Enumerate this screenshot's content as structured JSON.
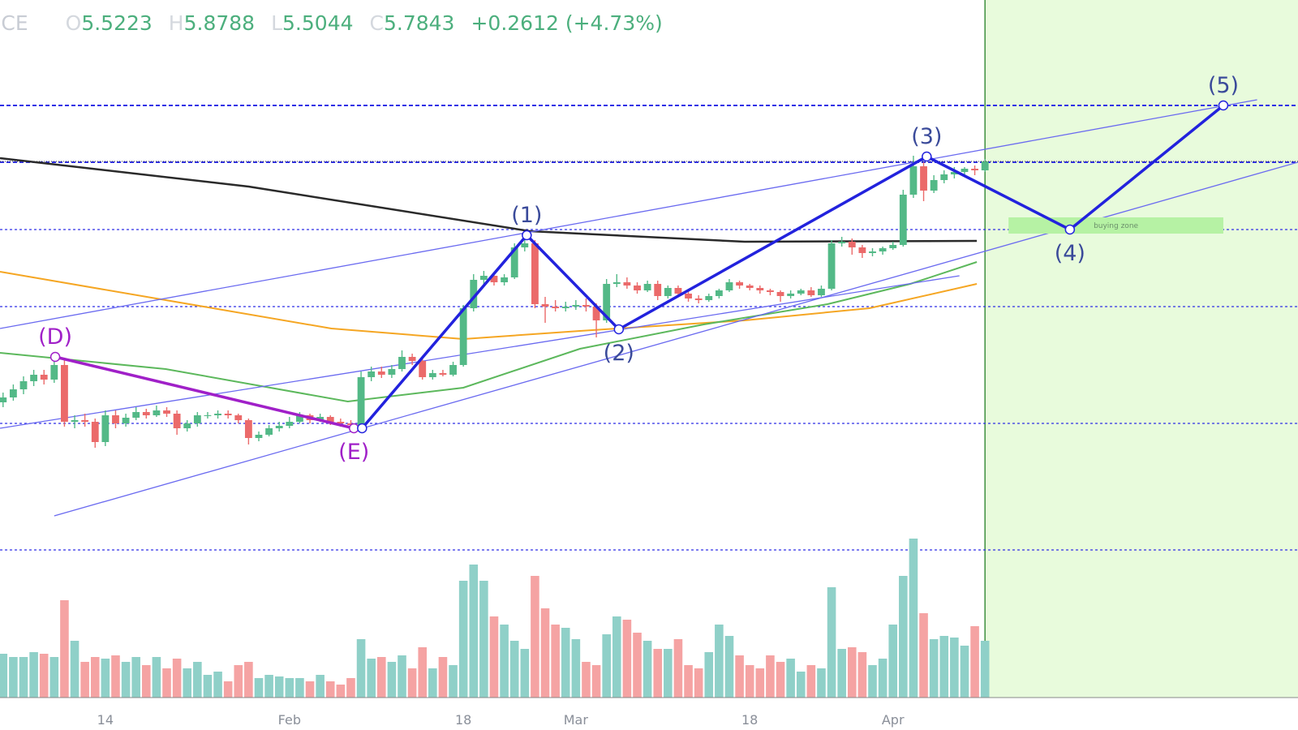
{
  "chart_data": {
    "type": "candlestick",
    "header": {
      "symbol": "ICE",
      "fields": [
        {
          "label": "O",
          "value": 5.5223
        },
        {
          "label": "H",
          "value": 5.8788
        },
        {
          "label": "L",
          "value": 5.5044
        },
        {
          "label": "C",
          "value": 5.7843
        }
      ],
      "change": {
        "value": 0.2612,
        "label": "+0.2612"
      },
      "change_pct": {
        "value": 4.73,
        "label": "(+4.73%)"
      }
    },
    "categories": [
      null,
      null,
      null,
      null,
      null,
      null,
      null,
      null,
      null,
      null,
      "14",
      null,
      null,
      null,
      null,
      null,
      null,
      null,
      null,
      null,
      null,
      null,
      null,
      null,
      null,
      null,
      null,
      null,
      "Feb",
      null,
      null,
      null,
      null,
      null,
      null,
      null,
      null,
      null,
      null,
      null,
      null,
      null,
      null,
      null,
      null,
      "18",
      null,
      null,
      null,
      null,
      null,
      null,
      null,
      null,
      null,
      null,
      "Mar",
      null,
      null,
      null,
      null,
      null,
      null,
      null,
      null,
      null,
      null,
      null,
      null,
      null,
      null,
      null,
      null,
      "18",
      null,
      null,
      null,
      null,
      null,
      null,
      null,
      null,
      null,
      null,
      null,
      null,
      null,
      "Apr",
      null,
      null,
      null,
      null,
      null,
      null,
      null,
      null,
      null
    ],
    "ohlc": [
      [
        4.3,
        4.36,
        4.27,
        4.33
      ],
      [
        4.33,
        4.41,
        4.31,
        4.38
      ],
      [
        4.38,
        4.46,
        4.35,
        4.43
      ],
      [
        4.43,
        4.5,
        4.4,
        4.47
      ],
      [
        4.47,
        4.5,
        4.41,
        4.44
      ],
      [
        4.44,
        4.56,
        4.42,
        4.53
      ],
      [
        4.53,
        4.57,
        4.15,
        4.18
      ],
      [
        4.18,
        4.22,
        4.14,
        4.19
      ],
      [
        4.19,
        4.23,
        4.15,
        4.18
      ],
      [
        4.18,
        4.2,
        4.02,
        4.055
      ],
      [
        4.055,
        4.25,
        4.03,
        4.22
      ],
      [
        4.22,
        4.25,
        4.14,
        4.17
      ],
      [
        4.17,
        4.23,
        4.15,
        4.205
      ],
      [
        4.205,
        4.27,
        4.19,
        4.24
      ],
      [
        4.24,
        4.26,
        4.2,
        4.22
      ],
      [
        4.22,
        4.28,
        4.21,
        4.25
      ],
      [
        4.25,
        4.27,
        4.21,
        4.23
      ],
      [
        4.23,
        4.25,
        4.1,
        4.14
      ],
      [
        4.14,
        4.19,
        4.12,
        4.17
      ],
      [
        4.17,
        4.24,
        4.15,
        4.22
      ],
      [
        4.22,
        4.24,
        4.2,
        4.22
      ],
      [
        4.22,
        4.25,
        4.2,
        4.23
      ],
      [
        4.23,
        4.25,
        4.2,
        4.22
      ],
      [
        4.22,
        4.23,
        4.17,
        4.19
      ],
      [
        4.19,
        4.2,
        4.04,
        4.08
      ],
      [
        4.08,
        4.12,
        4.06,
        4.1
      ],
      [
        4.1,
        4.16,
        4.09,
        4.14
      ],
      [
        4.14,
        4.18,
        4.12,
        4.155
      ],
      [
        4.155,
        4.21,
        4.14,
        4.18
      ],
      [
        4.18,
        4.24,
        4.17,
        4.22
      ],
      [
        4.22,
        4.23,
        4.17,
        4.19
      ],
      [
        4.19,
        4.23,
        4.18,
        4.21
      ],
      [
        4.21,
        4.22,
        4.16,
        4.18
      ],
      [
        4.18,
        4.2,
        4.15,
        4.17
      ],
      [
        4.17,
        4.19,
        4.14,
        4.16
      ],
      [
        4.16,
        4.49,
        4.15,
        4.455
      ],
      [
        4.455,
        4.52,
        4.43,
        4.49
      ],
      [
        4.49,
        4.52,
        4.45,
        4.47
      ],
      [
        4.47,
        4.53,
        4.45,
        4.505
      ],
      [
        4.505,
        4.62,
        4.49,
        4.58
      ],
      [
        4.58,
        4.6,
        4.53,
        4.555
      ],
      [
        4.555,
        4.57,
        4.44,
        4.455
      ],
      [
        4.455,
        4.5,
        4.44,
        4.48
      ],
      [
        4.48,
        4.5,
        4.46,
        4.47
      ],
      [
        4.47,
        4.55,
        4.46,
        4.53
      ],
      [
        4.53,
        4.9,
        4.52,
        4.88
      ],
      [
        4.88,
        5.09,
        4.86,
        5.055
      ],
      [
        5.055,
        5.11,
        5.03,
        5.08
      ],
      [
        5.08,
        5.1,
        5.02,
        5.04
      ],
      [
        5.04,
        5.09,
        5.02,
        5.07
      ],
      [
        5.07,
        5.28,
        5.06,
        5.255
      ],
      [
        5.255,
        5.34,
        5.23,
        5.28
      ],
      [
        5.28,
        5.3,
        4.88,
        4.905
      ],
      [
        4.905,
        4.95,
        4.79,
        4.89
      ],
      [
        4.89,
        4.93,
        4.86,
        4.88
      ],
      [
        4.88,
        4.92,
        4.86,
        4.89
      ],
      [
        4.89,
        4.93,
        4.87,
        4.9
      ],
      [
        4.9,
        4.94,
        4.86,
        4.89
      ],
      [
        4.89,
        4.91,
        4.7,
        4.805
      ],
      [
        4.805,
        5.06,
        4.79,
        5.03
      ],
      [
        5.03,
        5.09,
        5.01,
        5.04
      ],
      [
        5.04,
        5.07,
        5.0,
        5.02
      ],
      [
        5.02,
        5.04,
        4.97,
        4.99
      ],
      [
        4.99,
        5.05,
        4.98,
        5.03
      ],
      [
        5.03,
        5.05,
        4.93,
        4.955
      ],
      [
        4.955,
        5.02,
        4.94,
        5.005
      ],
      [
        5.005,
        5.02,
        4.95,
        4.97
      ],
      [
        4.97,
        4.99,
        4.92,
        4.94
      ],
      [
        4.94,
        4.96,
        4.91,
        4.93
      ],
      [
        4.93,
        4.97,
        4.92,
        4.955
      ],
      [
        4.955,
        5.0,
        4.94,
        4.99
      ],
      [
        4.99,
        5.06,
        4.98,
        5.04
      ],
      [
        5.04,
        5.05,
        5.0,
        5.02
      ],
      [
        5.02,
        5.03,
        4.99,
        5.005
      ],
      [
        5.005,
        5.02,
        4.97,
        4.99
      ],
      [
        4.99,
        5.0,
        4.96,
        4.98
      ],
      [
        4.98,
        4.99,
        4.92,
        4.955
      ],
      [
        4.955,
        4.99,
        4.94,
        4.97
      ],
      [
        4.97,
        5.0,
        4.96,
        4.99
      ],
      [
        4.99,
        5.01,
        4.95,
        4.96
      ],
      [
        4.96,
        5.02,
        4.95,
        5.0
      ],
      [
        5.0,
        5.3,
        4.99,
        5.28
      ],
      [
        5.28,
        5.32,
        5.26,
        5.29
      ],
      [
        5.29,
        5.31,
        5.21,
        5.255
      ],
      [
        5.255,
        5.27,
        5.19,
        5.22
      ],
      [
        5.22,
        5.25,
        5.2,
        5.23
      ],
      [
        5.23,
        5.26,
        5.21,
        5.25
      ],
      [
        5.25,
        5.29,
        5.24,
        5.27
      ],
      [
        5.27,
        5.61,
        5.26,
        5.58
      ],
      [
        5.58,
        5.82,
        5.56,
        5.755
      ],
      [
        5.755,
        5.78,
        5.54,
        5.605
      ],
      [
        5.605,
        5.7,
        5.59,
        5.67
      ],
      [
        5.67,
        5.73,
        5.65,
        5.705
      ],
      [
        5.705,
        5.75,
        5.68,
        5.72
      ],
      [
        5.72,
        5.75,
        5.69,
        5.74
      ],
      [
        5.74,
        5.76,
        5.7,
        5.73
      ],
      [
        5.73,
        5.8,
        5.72,
        5.785
      ]
    ],
    "volume": [
      27,
      25,
      25,
      28,
      27,
      25,
      60,
      35,
      22,
      25,
      24,
      26,
      22,
      25,
      20,
      25,
      18,
      24,
      18,
      22,
      14,
      16,
      10,
      20,
      22,
      12,
      14,
      13,
      12,
      12,
      10,
      14,
      10,
      8,
      12,
      36,
      24,
      25,
      22,
      26,
      18,
      31,
      18,
      25,
      20,
      72,
      82,
      72,
      50,
      45,
      35,
      30,
      75,
      55,
      45,
      43,
      36,
      22,
      20,
      39,
      50,
      48,
      40,
      35,
      30,
      30,
      36,
      20,
      18,
      28,
      45,
      38,
      26,
      20,
      18,
      26,
      22,
      24,
      16,
      20,
      18,
      68,
      30,
      31,
      28,
      20,
      24,
      45,
      75,
      98,
      52,
      36,
      38,
      37,
      32,
      44,
      35
    ],
    "xlim": [
      -0.3,
      126.6
    ],
    "ylim": [
      2.28,
      6.78
    ],
    "y2lim": [
      0,
      100
    ],
    "up_color": "#53b987",
    "down_color": "#eb6a6a",
    "volume_up_color": "#8fd0c8",
    "volume_down_color": "#f5a3a3",
    "price_line": true,
    "levels": [
      {
        "value": 6.13,
        "bold": true
      },
      {
        "value": 5.78,
        "bold": true
      },
      {
        "value": 5.365,
        "bold": false
      },
      {
        "value": 4.89,
        "bold": false
      },
      {
        "value": 4.17,
        "bold": false
      },
      {
        "value": 3.39,
        "bold": false
      }
    ],
    "level_color": "#2f2fe6",
    "overlays": [
      {
        "color": "#2a2a2a",
        "width": 2.5,
        "points": [
          [
            -0.3,
            5.805
          ],
          [
            24,
            5.63
          ],
          [
            51.5,
            5.355
          ],
          [
            72.5,
            5.29
          ],
          [
            95.2,
            5.295
          ]
        ]
      },
      {
        "color": "#f5a623",
        "width": 2,
        "points": [
          [
            -0.3,
            5.105
          ],
          [
            15.9,
            4.93
          ],
          [
            32.1,
            4.755
          ],
          [
            45,
            4.69
          ],
          [
            56.4,
            4.74
          ],
          [
            72.5,
            4.805
          ],
          [
            84.7,
            4.88
          ],
          [
            95.2,
            5.03
          ]
        ]
      },
      {
        "color": "#5cb85c",
        "width": 2,
        "points": [
          [
            -0.3,
            4.605
          ],
          [
            15.9,
            4.505
          ],
          [
            33.7,
            4.305
          ],
          [
            45,
            4.39
          ],
          [
            56.4,
            4.63
          ],
          [
            68.5,
            4.78
          ],
          [
            80.6,
            4.905
          ],
          [
            88.7,
            5.03
          ],
          [
            95.2,
            5.165
          ]
        ]
      },
      {
        "color": "#6a6af0",
        "width": 1.3,
        "points": [
          [
            -0.3,
            4.755
          ],
          [
            122.6,
            6.165
          ]
        ]
      },
      {
        "color": "#6a6af0",
        "width": 1.3,
        "points": [
          [
            -0.3,
            4.14
          ],
          [
            93.5,
            5.08
          ]
        ]
      },
      {
        "color": "#6a6af0",
        "width": 1.3,
        "points": [
          [
            5.0,
            3.6
          ],
          [
            126.6,
            5.78
          ]
        ]
      }
    ],
    "waves": [
      {
        "color": "#a020c8",
        "points": [
          {
            "label": "(D)",
            "x": 5.1,
            "y": 4.58,
            "pos": "above"
          },
          {
            "label": "(E)",
            "x": 34.3,
            "y": 4.14,
            "pos": "below"
          }
        ]
      },
      {
        "color": "#2222dd",
        "points": [
          {
            "label": null,
            "x": 35.1,
            "y": 4.14,
            "pos": "below"
          },
          {
            "label": "(1)",
            "x": 51.2,
            "y": 5.33,
            "pos": "above"
          },
          {
            "label": "(2)",
            "x": 60.2,
            "y": 4.75,
            "pos": "below"
          },
          {
            "label": "(3)",
            "x": 90.3,
            "y": 5.815,
            "pos": "above"
          },
          {
            "label": "(4)",
            "x": 104.3,
            "y": 5.365,
            "pos": "below"
          },
          {
            "label": "(5)",
            "x": 119.3,
            "y": 6.13,
            "pos": "above"
          }
        ]
      }
    ],
    "wave_label_color": "#3a4a9a",
    "buying_zone": {
      "label": "buying zone",
      "x": [
        98.3,
        119.3
      ],
      "y": [
        5.34,
        5.44
      ],
      "color": "#b6f2a4"
    },
    "projection": {
      "start": 96.0,
      "color": "#e8fbdc",
      "line_color": "#3f8f3f"
    }
  }
}
